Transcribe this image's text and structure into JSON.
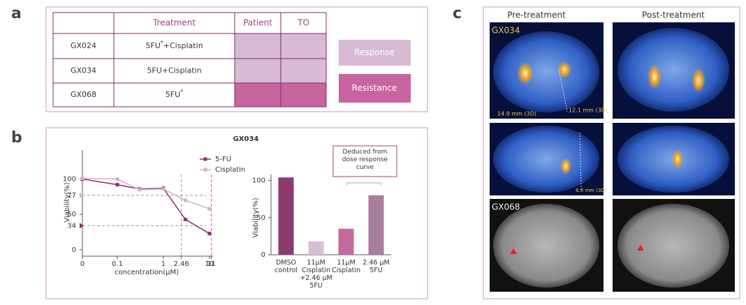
{
  "panel_labels": [
    "a",
    "b",
    "c"
  ],
  "table": {
    "header": [
      "Treatment",
      "Patient",
      "TO"
    ],
    "rows": [
      {
        "id": "GX024",
        "treatment": {
          "base": "5FU",
          "sup": "*",
          "rest": "+Cisplatin"
        },
        "color": "#d8bad5"
      },
      {
        "id": "GX034",
        "treatment": {
          "base": "5FU+Cisplatin"
        },
        "color": "#d8bad5"
      },
      {
        "id": "GX068",
        "treatment": {
          "base": "5FU",
          "sup": "*"
        },
        "color": "#c8649f"
      }
    ],
    "legend": [
      {
        "label": "Response",
        "color": "#d8bad5"
      },
      {
        "label": "Resistance",
        "color": "#c8649f"
      }
    ]
  },
  "chart_data": [
    {
      "type": "line",
      "title": "GX034",
      "x_label": "concentration(μM)",
      "y_label": "Viability(%)",
      "x_scale": "symlog",
      "x": [
        0,
        0.1,
        0.3,
        1,
        3,
        10
      ],
      "series": [
        {
          "name": "5-FU",
          "color": "#8b2e6e",
          "values": [
            100,
            92,
            86,
            87,
            43,
            23
          ]
        },
        {
          "name": "Cisplatin",
          "color": "#cfb0cb",
          "values": [
            101,
            100,
            85,
            86,
            70,
            58
          ]
        }
      ],
      "xlim": [
        0,
        12
      ],
      "xticks": [
        0,
        0.1,
        1,
        2.46,
        10,
        11
      ],
      "ylim": [
        -9,
        141
      ],
      "yticks": [
        0,
        34,
        50,
        77,
        100
      ],
      "guides": {
        "x": [
          2.46,
          11
        ],
        "y": [
          77,
          34
        ]
      }
    },
    {
      "type": "bar",
      "y_label": "Viability(%)",
      "categories": [
        "DMSO control",
        "11μM Cisplatin +2.46 μM 5FU",
        "11μM Cisplatin",
        "2.46 μM 5FU"
      ],
      "values": [
        104,
        18,
        35,
        80
      ],
      "colors": [
        "#8b3a6e",
        "#d6bfd4",
        "#c26a9e",
        "#a97d9c"
      ],
      "ylim": [
        0,
        108
      ],
      "yticks": [
        0,
        50,
        100
      ],
      "annotation": "Deduced from dose response curve"
    }
  ],
  "images": {
    "headers": [
      "Pre-treatment",
      "Post-treatment"
    ],
    "patients": [
      "GX034",
      "GX068"
    ],
    "measurements": [
      "14.9 mm (3D)",
      "12.1 mm (3D)",
      "8.9 mm (3D)"
    ]
  }
}
